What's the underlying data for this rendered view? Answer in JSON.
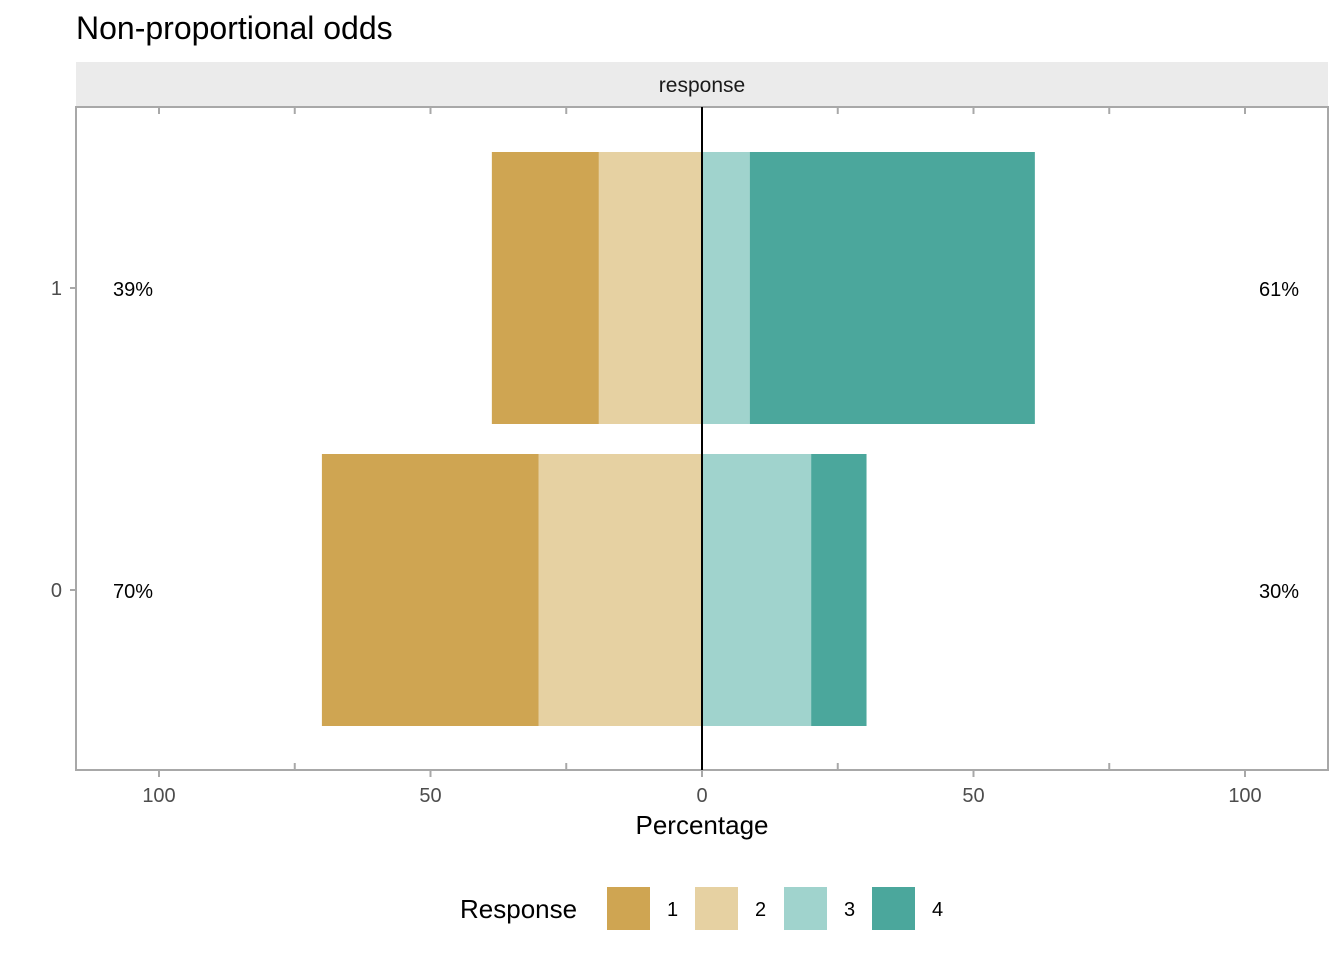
{
  "chart_data": {
    "type": "bar",
    "orientation": "horizontal",
    "stacking": "diverging",
    "title": "Non-proportional odds",
    "facet_label": "response",
    "xlabel": "Percentage",
    "ylabel": "",
    "xlim": [
      -100,
      100
    ],
    "x_ticks": [
      -100,
      -50,
      0,
      50,
      100
    ],
    "x_tick_labels": [
      "100",
      "50",
      "0",
      "50",
      "100"
    ],
    "categories": [
      "1",
      "0"
    ],
    "series": [
      {
        "name": "1",
        "color": "#CFA552",
        "values": [
          19.7,
          39.9
        ],
        "side": "negative"
      },
      {
        "name": "2",
        "color": "#E6D1A2",
        "values": [
          19.0,
          30.1
        ],
        "side": "negative"
      },
      {
        "name": "3",
        "color": "#A0D3CD",
        "values": [
          8.8,
          20.1
        ],
        "side": "positive"
      },
      {
        "name": "4",
        "color": "#4BA79C",
        "values": [
          52.5,
          10.2
        ],
        "side": "positive"
      }
    ],
    "left_totals": [
      "39%",
      "70%"
    ],
    "right_totals": [
      "61%",
      "30%"
    ],
    "legend": {
      "title": "Response",
      "position": "bottom",
      "entries": [
        "1",
        "2",
        "3",
        "4"
      ]
    },
    "grid": false
  }
}
